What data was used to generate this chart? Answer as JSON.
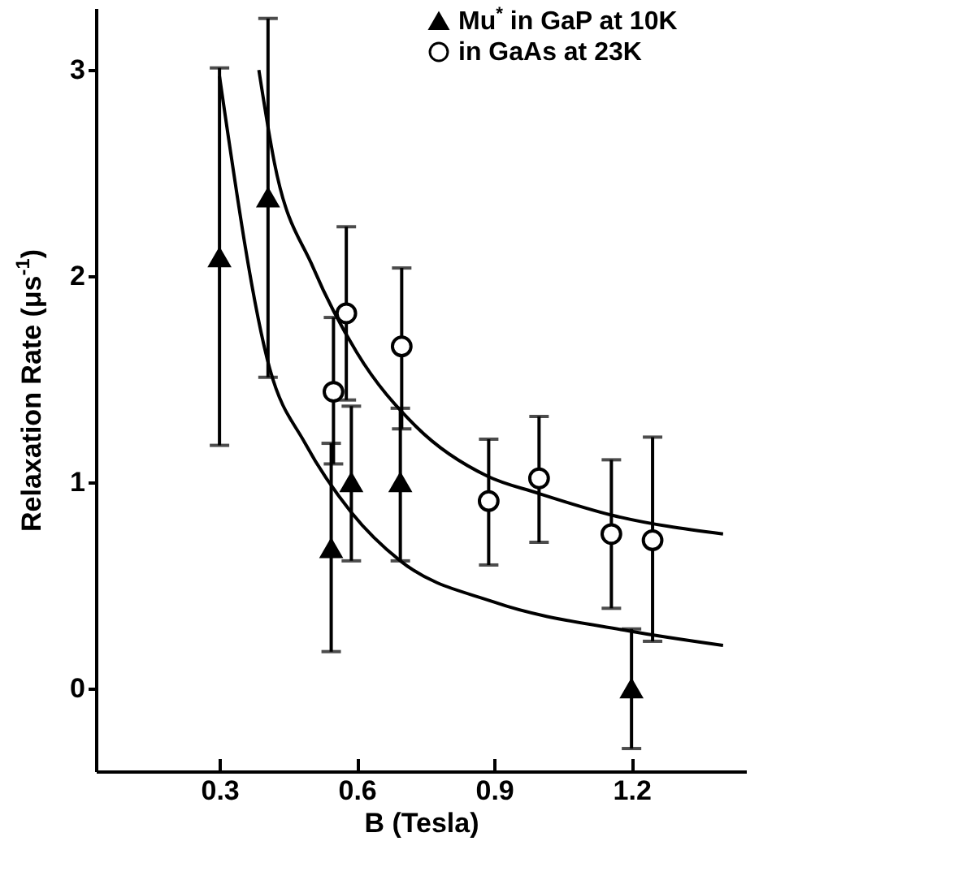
{
  "chart_data": {
    "type": "scatter",
    "xlabel": "B (Tesla)",
    "ylabel": "Relaxation Rate (μs$^{-1}$)",
    "xlim": [
      0.03,
      1.45
    ],
    "ylim": [
      -0.4,
      3.3
    ],
    "xticks": [
      0.3,
      0.6,
      0.9,
      1.2
    ],
    "yticks": [
      0,
      1,
      2,
      3
    ],
    "grid": false,
    "legend": "top right",
    "series": [
      {
        "name": "Mu$^{*}$ in GaP at 10K",
        "color": "#000000",
        "marker": "triangle",
        "x": [
          0.3,
          0.406,
          0.544,
          0.588,
          0.695,
          1.2
        ],
        "values": [
          2.09,
          2.38,
          0.68,
          1.0,
          1.0,
          0.0
        ],
        "errors": [
          [
            1.18,
            3.01
          ],
          [
            1.51,
            3.25
          ],
          [
            0.18,
            1.19
          ],
          [
            0.62,
            1.37
          ],
          [
            0.62,
            1.36
          ],
          [
            -0.29,
            0.29
          ]
        ]
      },
      {
        "name": "in GaAs at 23K",
        "color": "#000000",
        "marker": "circle",
        "x": [
          0.549,
          0.577,
          0.698,
          0.888,
          0.998,
          1.156,
          1.246
        ],
        "values": [
          1.44,
          1.82,
          1.66,
          0.91,
          1.02,
          0.75,
          0.72
        ],
        "errors": [
          [
            1.09,
            1.8
          ],
          [
            1.4,
            2.24
          ],
          [
            1.26,
            2.04
          ],
          [
            0.6,
            1.21
          ],
          [
            0.71,
            1.32
          ],
          [
            0.39,
            1.11
          ],
          [
            0.23,
            1.22
          ]
        ]
      },
      {
        "type": "line",
        "color": "#000000",
        "x": [
          0.3,
          0.41,
          0.487,
          0.588,
          0.695,
          0.9,
          1.195,
          1.4
        ],
        "values": [
          2.97,
          1.55,
          1.19,
          0.855,
          0.62,
          0.42,
          0.28,
          0.21
        ]
      },
      {
        "type": "line",
        "color": "#000000",
        "x": [
          0.386,
          0.42,
          0.505,
          0.6,
          0.73,
          0.886,
          0.993,
          1.16,
          1.4
        ],
        "values": [
          3.0,
          2.55,
          2.04,
          1.63,
          1.27,
          1.03,
          0.95,
          0.84,
          0.75
        ]
      }
    ]
  }
}
